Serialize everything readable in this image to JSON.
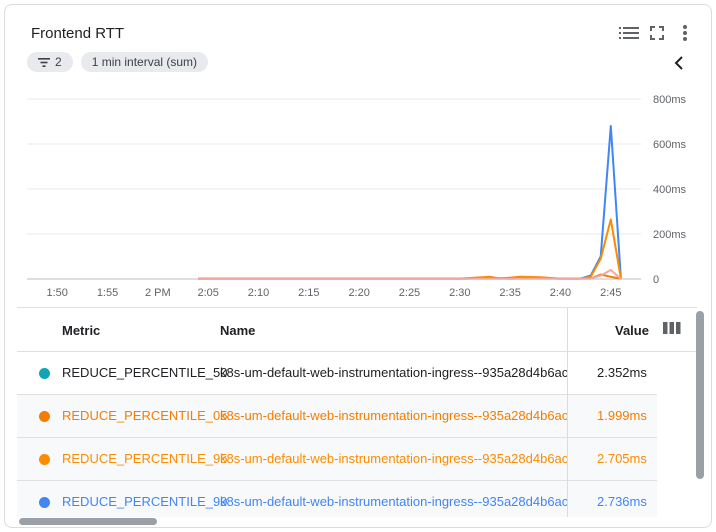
{
  "card": {
    "title": "Frontend RTT",
    "filter_chip": {
      "count": "2",
      "icon": "filter-icon"
    },
    "interval_chip": "1 min interval (sum)",
    "icons": [
      "legend-list-icon",
      "fullscreen-icon",
      "more-vert-icon",
      "chevron-left-icon"
    ]
  },
  "chart_data": {
    "type": "line",
    "title": "Frontend RTT",
    "y_unit": "ms",
    "y_ticks": [
      "800ms",
      "600ms",
      "400ms",
      "200ms",
      "0"
    ],
    "ylim": [
      0,
      800
    ],
    "x_ticks": [
      "1:50",
      "1:55",
      "2 PM",
      "2:05",
      "2:10",
      "2:15",
      "2:20",
      "2:25",
      "2:30",
      "2:35",
      "2:40",
      "2:45"
    ],
    "x_tick_minutes": [
      110,
      115,
      120,
      125,
      130,
      135,
      140,
      145,
      150,
      155,
      160,
      165
    ],
    "grid": true,
    "series": [
      {
        "name": "REDUCE_PERCENTILE_99",
        "color": "#4285f4",
        "points": [
          [
            124,
            2
          ],
          [
            130,
            2
          ],
          [
            140,
            2
          ],
          [
            150,
            2
          ],
          [
            153,
            3
          ],
          [
            155,
            2
          ],
          [
            158,
            4
          ],
          [
            160,
            2
          ],
          [
            162,
            2
          ],
          [
            163,
            15
          ],
          [
            164,
            100
          ],
          [
            165,
            680
          ],
          [
            166,
            2
          ]
        ]
      },
      {
        "name": "REDUCE_PERCENTILE_95",
        "color": "#fb8c00",
        "points": [
          [
            124,
            2
          ],
          [
            130,
            2
          ],
          [
            140,
            2
          ],
          [
            150,
            2
          ],
          [
            153,
            10
          ],
          [
            154,
            2
          ],
          [
            156,
            10
          ],
          [
            158,
            8
          ],
          [
            160,
            2
          ],
          [
            162,
            2
          ],
          [
            163,
            10
          ],
          [
            164,
            90
          ],
          [
            165,
            265
          ],
          [
            166,
            2
          ]
        ]
      },
      {
        "name": "REDUCE_PERCENTILE_05",
        "color": "#f57c00",
        "points": [
          [
            124,
            2
          ],
          [
            140,
            2
          ],
          [
            150,
            2
          ],
          [
            155,
            4
          ],
          [
            160,
            2
          ],
          [
            163,
            2
          ],
          [
            164,
            20
          ],
          [
            165,
            10
          ],
          [
            166,
            2
          ]
        ]
      },
      {
        "name": "REDUCE_PERCENTILE_50",
        "color": "#f4a7a0",
        "points": [
          [
            124,
            1
          ],
          [
            150,
            1
          ],
          [
            160,
            1
          ],
          [
            163,
            2
          ],
          [
            164,
            15
          ],
          [
            165,
            40
          ],
          [
            166,
            1
          ]
        ]
      }
    ]
  },
  "table": {
    "columns": {
      "metric": "Metric",
      "name": "Name",
      "value": "Value"
    },
    "rows": [
      {
        "metric": "REDUCE_PERCENTILE_50",
        "name": "k8s-um-default-web-instrumentation-ingress--935a28d4b6ac",
        "value": "2.352ms",
        "color": "#12a4b4",
        "text_color": "#202124"
      },
      {
        "metric": "REDUCE_PERCENTILE_05",
        "name": "k8s-um-default-web-instrumentation-ingress--935a28d4b6ac",
        "value": "1.999ms",
        "color": "#f57c00",
        "text_color": "#f57c00"
      },
      {
        "metric": "REDUCE_PERCENTILE_95",
        "name": "k8s-um-default-web-instrumentation-ingress--935a28d4b6ac",
        "value": "2.705ms",
        "color": "#fb8c00",
        "text_color": "#fb8c00"
      },
      {
        "metric": "REDUCE_PERCENTILE_99",
        "name": "k8s-um-default-web-instrumentation-ingress--935a28d4b6ac",
        "value": "2.736ms",
        "color": "#4285f4",
        "text_color": "#4285f4"
      }
    ]
  }
}
